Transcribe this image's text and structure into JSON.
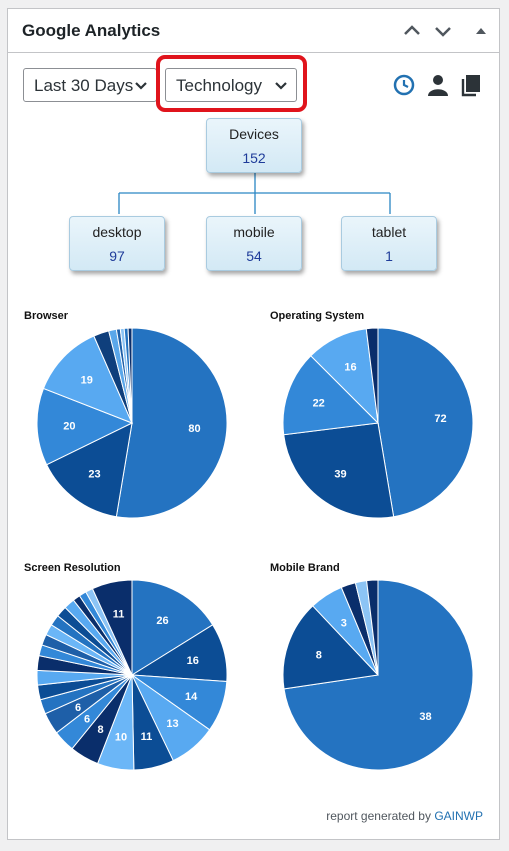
{
  "header": {
    "title": "Google Analytics"
  },
  "controls": {
    "period": "Last 30 Days",
    "report": "Technology"
  },
  "toolbar_icons": [
    "realtime-clock-icon",
    "user-icon",
    "copy-icon"
  ],
  "colors": {
    "accent": "#2271b1",
    "highlight": "#e0141c",
    "link": "#2271b1"
  },
  "tree": {
    "root": {
      "label": "Devices",
      "value": "152"
    },
    "children": [
      {
        "label": "desktop",
        "value": "97"
      },
      {
        "label": "mobile",
        "value": "54"
      },
      {
        "label": "tablet",
        "value": "1"
      }
    ]
  },
  "chart_data": [
    {
      "type": "pie",
      "title": "Browser",
      "values": [
        80,
        23,
        20,
        19,
        4,
        2,
        1,
        1,
        1,
        1
      ],
      "labels": [
        "80",
        "23",
        "20",
        "19",
        "",
        "",
        "",
        "",
        "",
        ""
      ],
      "colors": [
        "#2473c1",
        "#0c4d95",
        "#3388d8",
        "#58a9f1",
        "#0f3f7c",
        "#5aa7ea",
        "#1e5fa8",
        "#8cc4f5",
        "#2473c1",
        "#0a2e6b"
      ]
    },
    {
      "type": "pie",
      "title": "Operating System",
      "values": [
        72,
        39,
        22,
        16,
        3
      ],
      "labels": [
        "72",
        "39",
        "22",
        "16",
        ""
      ],
      "colors": [
        "#2473c1",
        "#0c4d95",
        "#3388d8",
        "#58a9f1",
        "#0a2e6b"
      ]
    },
    {
      "type": "pie",
      "title": "Screen Resolution",
      "values": [
        26,
        16,
        14,
        13,
        11,
        10,
        8,
        6,
        6,
        4,
        4,
        4,
        4,
        3,
        3,
        3,
        3,
        3,
        3,
        2,
        2,
        2,
        11
      ],
      "labels": [
        "26",
        "16",
        "14",
        "13",
        "11",
        "10",
        "8",
        "6",
        "6",
        "",
        "",
        "",
        "",
        "",
        "",
        "",
        "",
        "",
        "",
        "",
        "",
        "",
        "11"
      ],
      "colors": [
        "#2473c1",
        "#0c4d95",
        "#3388d8",
        "#58a9f1",
        "#0c4d95",
        "#6bb6f7",
        "#0a2e6b",
        "#3388d8",
        "#1e5fa8",
        "#2473c1",
        "#0c4d95",
        "#58a9f1",
        "#0a2e6b",
        "#3388d8",
        "#1e5fa8",
        "#6bb6f7",
        "#2473c1",
        "#0c4d95",
        "#58a9f1",
        "#0a2e6b",
        "#3388d8",
        "#8cc4f5",
        "#0a2e6b"
      ]
    },
    {
      "type": "pie",
      "title": "Mobile Brand",
      "values": [
        38,
        8,
        3,
        1.3,
        1,
        1
      ],
      "labels": [
        "38",
        "8",
        "3",
        "",
        "",
        ""
      ],
      "colors": [
        "#2473c1",
        "#0c4d95",
        "#58a9f1",
        "#0a2e6b",
        "#8cc4f5",
        "#0a2e6b"
      ]
    }
  ],
  "footer": {
    "text": "report generated by",
    "link": "GAINWP"
  }
}
